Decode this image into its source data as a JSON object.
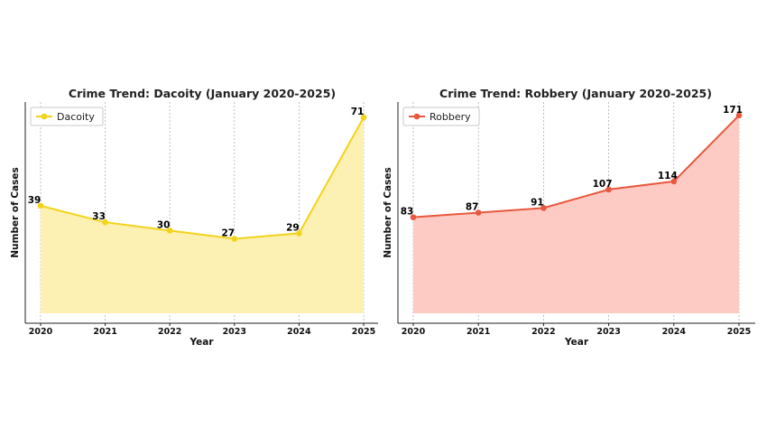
{
  "chart_data": [
    {
      "type": "area",
      "title": "Crime Trend: Dacoity (January 2020-2025)",
      "xlabel": "Year",
      "ylabel": "Number of Cases",
      "x": [
        "2020",
        "2021",
        "2022",
        "2023",
        "2024",
        "2025"
      ],
      "series": [
        {
          "name": "Dacoity",
          "values": [
            39,
            33,
            30,
            27,
            29,
            71
          ]
        }
      ],
      "ylim": [
        0,
        73
      ],
      "data_labels": true,
      "grid": "vertical dashed",
      "legend_position": "top-left",
      "colors": {
        "line": "#f2d31b",
        "fill": "#fdf0b3",
        "marker": "#f2d31b"
      }
    },
    {
      "type": "area",
      "title": "Crime Trend: Robbery (January 2020-2025)",
      "xlabel": "Year",
      "ylabel": "Number of Cases",
      "x": [
        "2020",
        "2021",
        "2022",
        "2023",
        "2024",
        "2025"
      ],
      "series": [
        {
          "name": "Robbery",
          "values": [
            83,
            87,
            91,
            107,
            114,
            171
          ]
        }
      ],
      "ylim": [
        0,
        174
      ],
      "data_labels": true,
      "grid": "vertical dashed",
      "legend_position": "top-left",
      "colors": {
        "line": "#e8583e",
        "fill": "#fdcbc4",
        "marker": "#e8583e"
      }
    }
  ]
}
